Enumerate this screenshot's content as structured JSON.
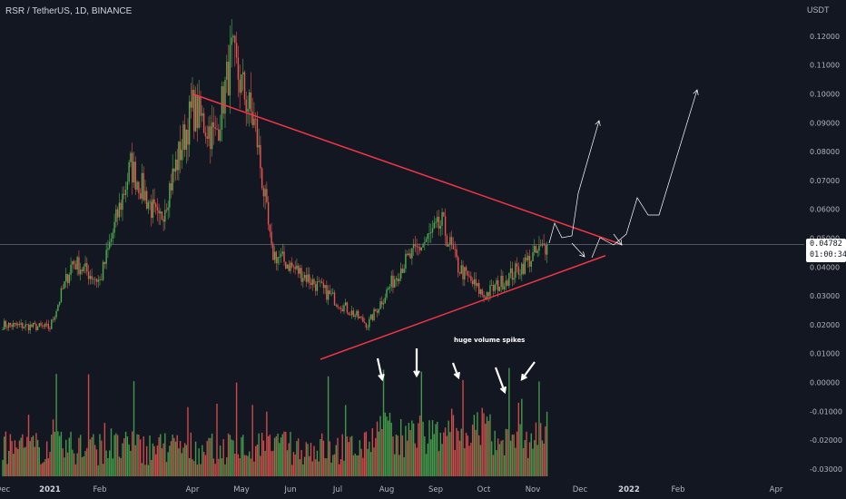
{
  "header": {
    "symbol_title": "RSR / TetherUS, 1D, BINANCE",
    "currency": "USDT"
  },
  "price_label": {
    "price": "0.04782",
    "countdown": "01:00:34"
  },
  "annotation": "huge volume spikes",
  "colors": {
    "background": "#131722",
    "up": "#26a69a",
    "up_bright": "#4caf50",
    "down": "#ef5350",
    "trendline": "#f23645",
    "arrow": "#ffffff",
    "gridline": "#787b86"
  },
  "chart_data": {
    "type": "candlestick",
    "title": "RSR / TetherUS, 1D, BINANCE",
    "x_tick_labels": [
      "Dec",
      "2021",
      "Feb",
      "Apr",
      "May",
      "Jun",
      "Jul",
      "Aug",
      "Sep",
      "Oct",
      "Nov",
      "Dec",
      "2022",
      "Feb",
      "Apr"
    ],
    "y_tick_labels": [
      "0.12000",
      "0.11000",
      "0.10000",
      "0.09000",
      "0.08000",
      "0.07000",
      "0.06000",
      "0.05000",
      "0.04000",
      "0.03000",
      "0.02000",
      "0.01000",
      "0.00000",
      "-0.01000",
      "-0.02000",
      "-0.03000"
    ],
    "ylim": [
      -0.0325,
      0.128
    ],
    "price_path_approx": [
      {
        "date": "2020-12-01",
        "close": 0.02
      },
      {
        "date": "2021-01-01",
        "close": 0.019
      },
      {
        "date": "2021-01-15",
        "close": 0.042
      },
      {
        "date": "2021-02-01",
        "close": 0.035
      },
      {
        "date": "2021-02-20",
        "close": 0.075
      },
      {
        "date": "2021-03-10",
        "close": 0.055
      },
      {
        "date": "2021-04-01",
        "close": 0.095
      },
      {
        "date": "2021-04-15",
        "close": 0.085
      },
      {
        "date": "2021-04-25",
        "close": 0.113
      },
      {
        "date": "2021-05-10",
        "close": 0.088
      },
      {
        "date": "2021-05-20",
        "close": 0.045
      },
      {
        "date": "2021-06-10",
        "close": 0.037
      },
      {
        "date": "2021-07-01",
        "close": 0.028
      },
      {
        "date": "2021-07-20",
        "close": 0.02
      },
      {
        "date": "2021-08-10",
        "close": 0.04
      },
      {
        "date": "2021-09-05",
        "close": 0.055
      },
      {
        "date": "2021-09-15",
        "close": 0.04
      },
      {
        "date": "2021-10-01",
        "close": 0.03
      },
      {
        "date": "2021-10-20",
        "close": 0.038
      },
      {
        "date": "2021-11-10",
        "close": 0.0478
      }
    ],
    "current_price": 0.04782,
    "resistance_line": [
      {
        "date": "2021-04-01",
        "value": 0.1
      },
      {
        "date": "2021-12-10",
        "value": 0.049
      }
    ],
    "support_line": [
      {
        "date": "2021-06-20",
        "value": 0.008
      },
      {
        "date": "2021-12-01",
        "value": 0.043
      }
    ],
    "volume_spike_arrows": 5,
    "projection_paths": 3
  }
}
